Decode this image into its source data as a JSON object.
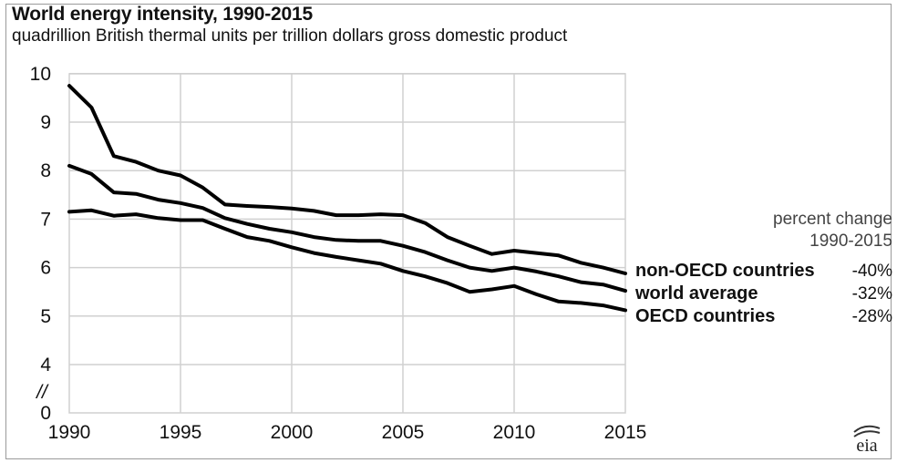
{
  "header": {
    "title": "World energy intensity, 1990-2015",
    "subtitle": "quadrillion British thermal units per trillion dollars gross domestic product"
  },
  "legend": {
    "header_line1": "percent change",
    "header_line2": "1990-2015",
    "entries": [
      {
        "label": "non-OECD countries",
        "pct": "-40%"
      },
      {
        "label": "world average",
        "pct": "-32%"
      },
      {
        "label": "OECD countries",
        "pct": "-28%"
      }
    ]
  },
  "axis_break": "//",
  "logo": {
    "text": "eia"
  },
  "colors": {
    "line": "#000000",
    "grid": "#d0d0d0",
    "frame": "#9a9a9a"
  },
  "chart_data": {
    "type": "line",
    "title": "World energy intensity, 1990-2015",
    "subtitle": "quadrillion British thermal units per trillion dollars gross domestic product",
    "xlabel": "",
    "ylabel": "",
    "xlim": [
      1990,
      2015
    ],
    "ylim": [
      0,
      10
    ],
    "y_axis_break": [
      0,
      4
    ],
    "x_ticks": [
      1990,
      1995,
      2000,
      2005,
      2010,
      2015
    ],
    "y_ticks": [
      0,
      4,
      5,
      6,
      7,
      8,
      9,
      10
    ],
    "grid": true,
    "legend": "direct labels at right",
    "x": [
      1990,
      1991,
      1992,
      1993,
      1994,
      1995,
      1996,
      1997,
      1998,
      1999,
      2000,
      2001,
      2002,
      2003,
      2004,
      2005,
      2006,
      2007,
      2008,
      2009,
      2010,
      2011,
      2012,
      2013,
      2014,
      2015
    ],
    "series": [
      {
        "name": "non-OECD countries",
        "values": [
          9.75,
          9.3,
          8.3,
          8.18,
          8.0,
          7.9,
          7.65,
          7.3,
          7.27,
          7.25,
          7.22,
          7.17,
          7.08,
          7.08,
          7.1,
          7.08,
          6.92,
          6.63,
          6.45,
          6.28,
          6.35,
          6.3,
          6.25,
          6.1,
          6.0,
          5.88
        ]
      },
      {
        "name": "world average",
        "values": [
          8.1,
          7.93,
          7.55,
          7.52,
          7.4,
          7.33,
          7.23,
          7.02,
          6.9,
          6.8,
          6.73,
          6.63,
          6.57,
          6.55,
          6.55,
          6.45,
          6.32,
          6.15,
          6.0,
          5.93,
          6.0,
          5.92,
          5.82,
          5.7,
          5.65,
          5.52
        ]
      },
      {
        "name": "OECD countries",
        "values": [
          7.15,
          7.18,
          7.07,
          7.1,
          7.02,
          6.98,
          6.98,
          6.8,
          6.63,
          6.55,
          6.42,
          6.3,
          6.22,
          6.15,
          6.08,
          5.93,
          5.82,
          5.68,
          5.5,
          5.55,
          5.62,
          5.45,
          5.3,
          5.27,
          5.22,
          5.12
        ]
      }
    ],
    "percent_change": {
      "non-OECD countries": "-40%",
      "world average": "-32%",
      "OECD countries": "-28%"
    }
  }
}
